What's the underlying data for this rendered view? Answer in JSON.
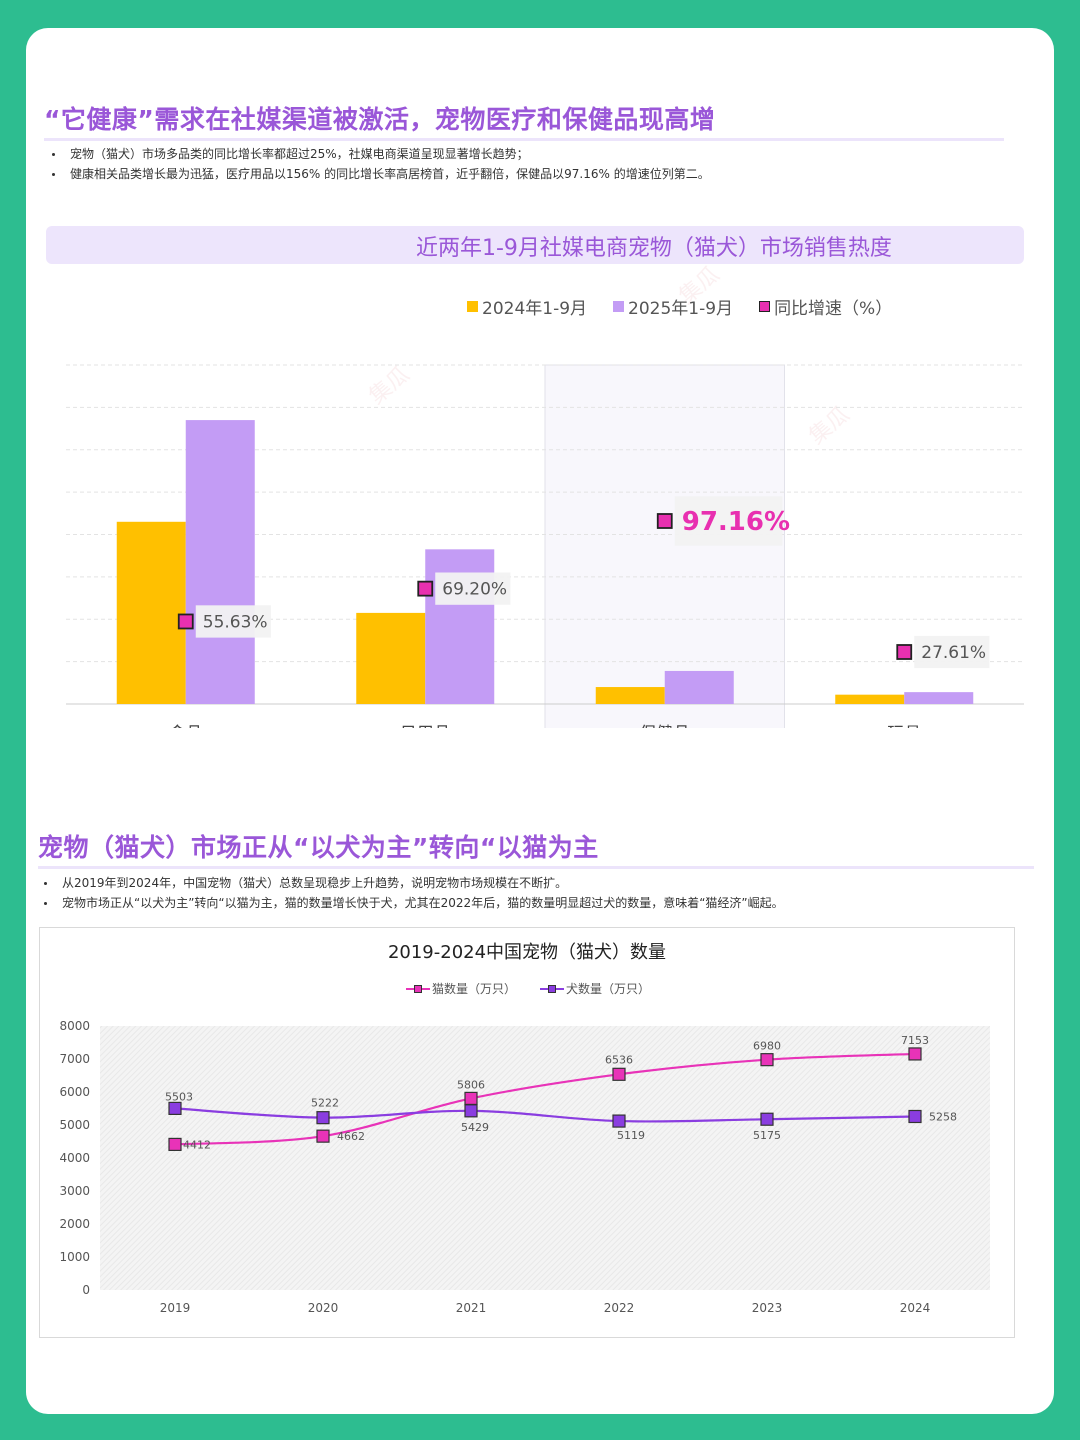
{
  "section1": {
    "title": "“它健康”需求在社媒渠道被激活，宠物医疗和保健品现高增",
    "bullets": [
      "宠物（猫犬）市场多品类的同比增长率都超过25%，社媒电商渠道呈现显著增长趋势；",
      "健康相关品类增长最为迅猛，医疗用品以156% 的同比增长率高居榜首，近乎翻倍，保健品以97.16% 的增速位列第二。"
    ]
  },
  "section2": {
    "title": "宠物（猫犬）市场正从“以犬为主”转向“以猫为主",
    "bullets": [
      "从2019年到2024年，中国宠物（猫犬）总数呈现稳步上升趋势，说明宠物市场规模在不断扩。",
      "宠物市场正从“以犬为主”转向“以猫为主，猫的数量增长快于犬，尤其在2022年后，猫的数量明显超过犬的数量，意味着“猫经济”崛起。"
    ]
  },
  "colors": {
    "accent": "#9a57d8",
    "bar2024": "#ffc000",
    "bar2025": "#c39cf5",
    "growth": "#e830b0",
    "cat": "#e833b8",
    "dog": "#8a3de0"
  },
  "chart_data": [
    {
      "type": "bar",
      "title": "近两年1-9月社媒电商宠物（猫犬）市场销售热度",
      "categories": [
        "食品",
        "日用品",
        "保健品",
        "玩具"
      ],
      "series": [
        {
          "name": "2024年1-9月",
          "values": [
            43,
            21.5,
            4,
            2.2
          ]
        },
        {
          "name": "2025年1-9月",
          "values": [
            67,
            36.5,
            7.8,
            2.8
          ]
        }
      ],
      "growth": {
        "name": "同比增速（%）",
        "labels": [
          "55.63%",
          "69.20%",
          "97.16%",
          "27.61%"
        ],
        "values": [
          55.63,
          69.2,
          97.16,
          27.61
        ]
      },
      "highlight_category": "保健品",
      "ylim": [
        0,
        80
      ],
      "grid": true,
      "legend": "top"
    },
    {
      "type": "line",
      "title": "2019-2024中国宠物（猫犬）数量",
      "x": [
        "2019",
        "2020",
        "2021",
        "2022",
        "2023",
        "2024"
      ],
      "series": [
        {
          "name": "猫数量（万只）",
          "values": [
            4412,
            4662,
            5806,
            6536,
            6980,
            7153
          ]
        },
        {
          "name": "犬数量（万只）",
          "values": [
            5503,
            5222,
            5429,
            5119,
            5175,
            5258
          ]
        }
      ],
      "yticks": [
        "0",
        "1000",
        "2000",
        "3000",
        "4000",
        "5000",
        "6000",
        "7000",
        "8000"
      ],
      "ylim": [
        0,
        8000
      ],
      "legend": "top"
    }
  ]
}
